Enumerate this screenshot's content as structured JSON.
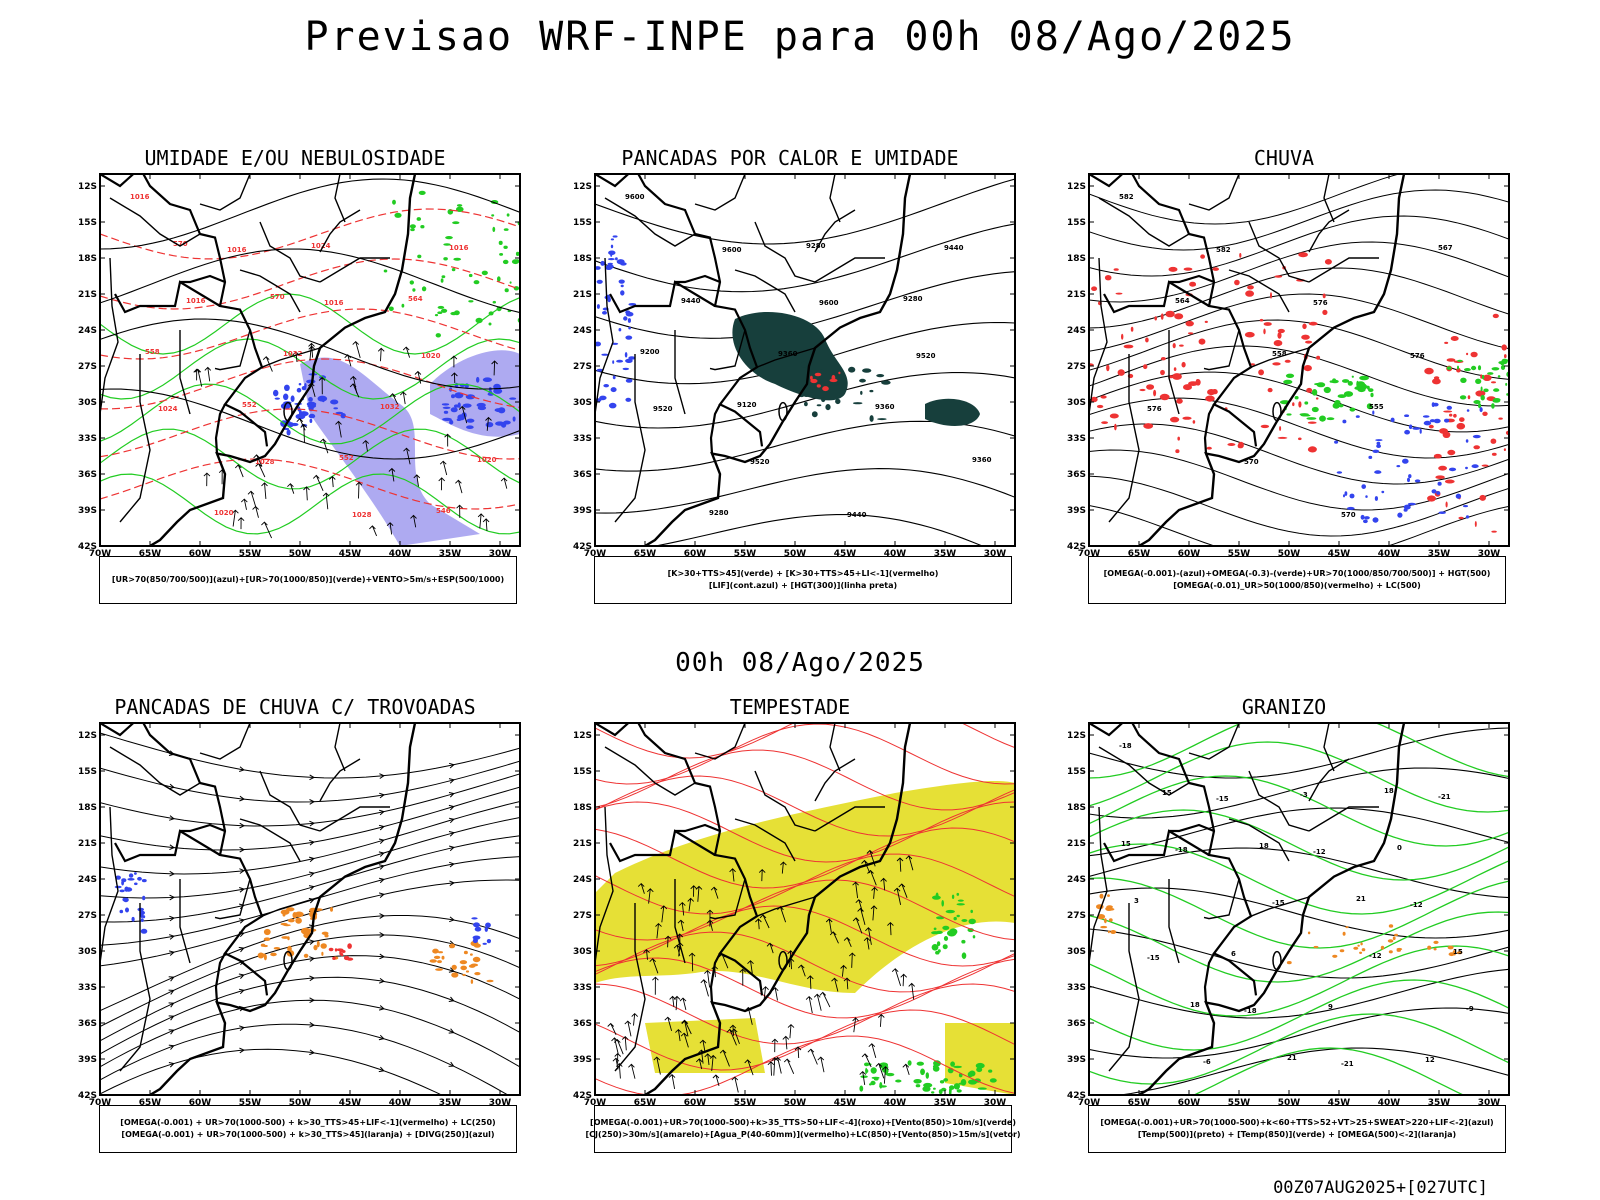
{
  "title": "Previsao WRF-INPE  para 00h 08/Ago/2025",
  "mid_title": "00h 08/Ago/2025",
  "footer": "00Z07AUG2025+[027UTC]",
  "axes": {
    "lat_labels": [
      "12S",
      "15S",
      "18S",
      "21S",
      "24S",
      "27S",
      "30S",
      "33S",
      "36S",
      "39S",
      "42S"
    ],
    "lon_labels": [
      "70W",
      "65W",
      "60W",
      "55W",
      "50W",
      "45W",
      "40W",
      "35W",
      "30W"
    ]
  },
  "colors": {
    "green": "#22cc22",
    "red": "#ee3333",
    "blue": "#3344ee",
    "lavender": "#9a95ee",
    "dark_teal": "#173f3c",
    "orange": "#ee8822",
    "yellow": "#e6e036",
    "black": "#000000"
  },
  "panels": [
    {
      "title": "UMIDADE E/OU NEBULOSIDADE",
      "legend": [
        "[UR>70(850/700/500)](azul)+[UR>70(1000/850)](verde)+VENTO>5m/s+ESP(500/1000)"
      ],
      "labels": [
        "1016",
        "1016",
        "1016",
        "1020",
        "1024",
        "1028",
        "1028",
        "1016",
        "1016",
        "1032",
        "1032",
        "1020",
        "1020",
        "1024",
        "564",
        "558",
        "552",
        "552",
        "546",
        "570",
        "570"
      ]
    },
    {
      "title": "PANCADAS POR CALOR E UMIDADE",
      "legend": [
        "[K>30+TTS>45](verde) + [K>30+TTS>45+LI<-1](vermelho)",
        "[LIF](cont.azul) + [HGT(300)](linha preta)"
      ],
      "labels": [
        "9600",
        "9600",
        "9600",
        "9520",
        "9520",
        "9520",
        "9440",
        "9440",
        "9440",
        "9360",
        "9360",
        "9360",
        "9280",
        "9280",
        "9280",
        "9200",
        "9120"
      ]
    },
    {
      "title": "CHUVA",
      "legend": [
        "[OMEGA(-0.001)-(azul)+OMEGA(-0.3)-(verde)+UR>70(1000/850/700/500)] + HGT(500)",
        "[OMEGA(-0.01)_UR>50(1000/850)(vermelho) + LC(500)"
      ],
      "labels": [
        "582",
        "582",
        "576",
        "576",
        "576",
        "570",
        "570",
        "567",
        "564",
        "558",
        "555"
      ]
    },
    {
      "title": "PANCADAS DE CHUVA C/ TROVOADAS",
      "legend": [
        "[OMEGA(-0.001) + UR>70(1000-500) + k>30_TTS>45+LIF<-1](vermelho) + LC(250)",
        "[OMEGA(-0.001) + UR>70(1000-500) + k>30_TTS>45](laranja) + [DIVG(250)](azul)"
      ],
      "labels": []
    },
    {
      "title": "TEMPESTADE",
      "legend": [
        "[OMEGA(-0.001)+UR>70(1000-500)+k>35_TTS>50+LIF<-4](roxo)+[Vento(850)>10m/s](verde)",
        "[CJ(250)>30m/s](amarelo)+[Agua_P(40-60mm)](vermelho)+LC(850)+[Vento(850)>15m/s](vetor)"
      ],
      "labels": []
    },
    {
      "title": "GRANIZO",
      "legend": [
        "[OMEGA(-0.001)+UR>70(1000-500)+k<60+TTS>52+VT>25+SWEAT>220+LIF<-2](azul)",
        "[Temp(500)](preto) + [Temp(850)](verde) + [OMEGA(500)<-2](laranja)"
      ],
      "labels": [
        "-18",
        "-15",
        "-12",
        "-12",
        "-15",
        "-18",
        "-21",
        "-21",
        "-18",
        "-15",
        "-12",
        "-9",
        "-6",
        "-3",
        "0",
        "3",
        "6",
        "9",
        "12",
        "15",
        "18",
        "21",
        "15",
        "18",
        "21",
        "18",
        "15"
      ]
    }
  ]
}
